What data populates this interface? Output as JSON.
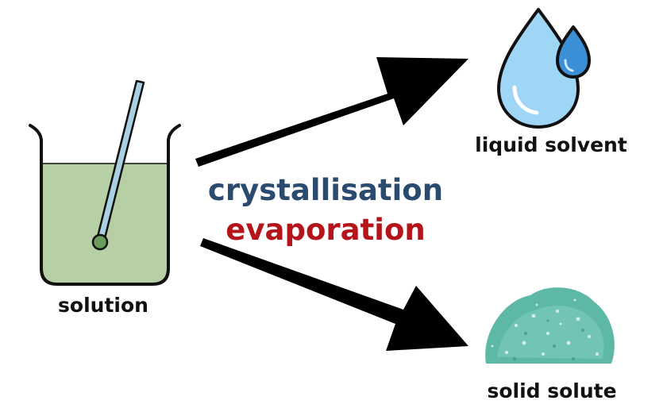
{
  "labels": {
    "solution": "solution",
    "liquid_solvent": "liquid solvent",
    "solid_solute": "solid solute"
  },
  "processes": [
    {
      "text": "crystallisation",
      "color": "#2b4a6f"
    },
    {
      "text": "evaporation",
      "color": "#b5141b"
    }
  ],
  "colors": {
    "solution_fill": "#b7cfa4",
    "stir_rod": "#a9d1e3",
    "drop_light": "#9fd5f5",
    "drop_dark": "#3a8fd6",
    "crystal": "#5db8a6",
    "arrow": "#000000"
  }
}
